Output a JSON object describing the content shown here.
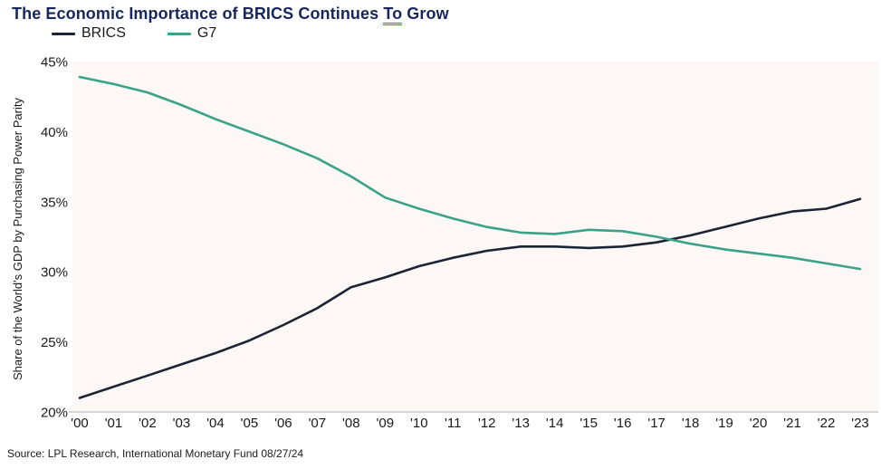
{
  "header": {
    "title_before": "The Economic Importance of BRICS Continues ",
    "title_underlined": "To",
    "title_after": " Grow"
  },
  "legend": {
    "items": [
      {
        "label": "BRICS",
        "color": "#1a2433"
      },
      {
        "label": "G7",
        "color": "#3aa287"
      }
    ]
  },
  "y_axis": {
    "title": "Share of the World's GDP by Purchasing Power Parity"
  },
  "footer": {
    "source": "Source: LPL Research, International Monetary Fund 08/27/24"
  },
  "colors": {
    "title_navy": "#17265c",
    "brics_line": "#1a2433",
    "g7_line": "#3aa287",
    "plot_background": "#fdf8f5",
    "axis_line": "#c9c9c9",
    "tick_text": "#1a1a1a",
    "grammar_underline_blue": "#2f6fd6"
  },
  "chart_data": {
    "type": "line",
    "title": "The Economic Importance of BRICS Continues To Grow",
    "xlabel": "",
    "ylabel": "Share of the World's GDP by Purchasing Power Parity",
    "ylim": [
      20,
      45
    ],
    "yticks": [
      20,
      25,
      30,
      35,
      40,
      45
    ],
    "ytick_suffix": "%",
    "grid": false,
    "legend_position": "top-left",
    "x": [
      "'00",
      "'01",
      "'02",
      "'03",
      "'04",
      "'05",
      "'06",
      "'07",
      "'08",
      "'09",
      "'10",
      "'11",
      "'12",
      "'13",
      "'14",
      "'15",
      "'16",
      "'17",
      "'18",
      "'19",
      "'20",
      "'21",
      "'22",
      "'23"
    ],
    "series": [
      {
        "name": "BRICS",
        "color": "#1a2433",
        "values": [
          21.0,
          21.8,
          22.6,
          23.4,
          24.2,
          25.1,
          26.2,
          27.4,
          28.9,
          29.6,
          30.4,
          31.0,
          31.5,
          31.8,
          31.8,
          31.7,
          31.8,
          32.1,
          32.6,
          33.2,
          33.8,
          34.3,
          34.5,
          35.2
        ]
      },
      {
        "name": "G7",
        "color": "#3aa287",
        "values": [
          43.9,
          43.4,
          42.8,
          41.9,
          40.9,
          40.0,
          39.1,
          38.1,
          36.8,
          35.3,
          34.5,
          33.8,
          33.2,
          32.8,
          32.7,
          33.0,
          32.9,
          32.5,
          32.0,
          31.6,
          31.3,
          31.0,
          30.6,
          30.2
        ]
      }
    ]
  }
}
